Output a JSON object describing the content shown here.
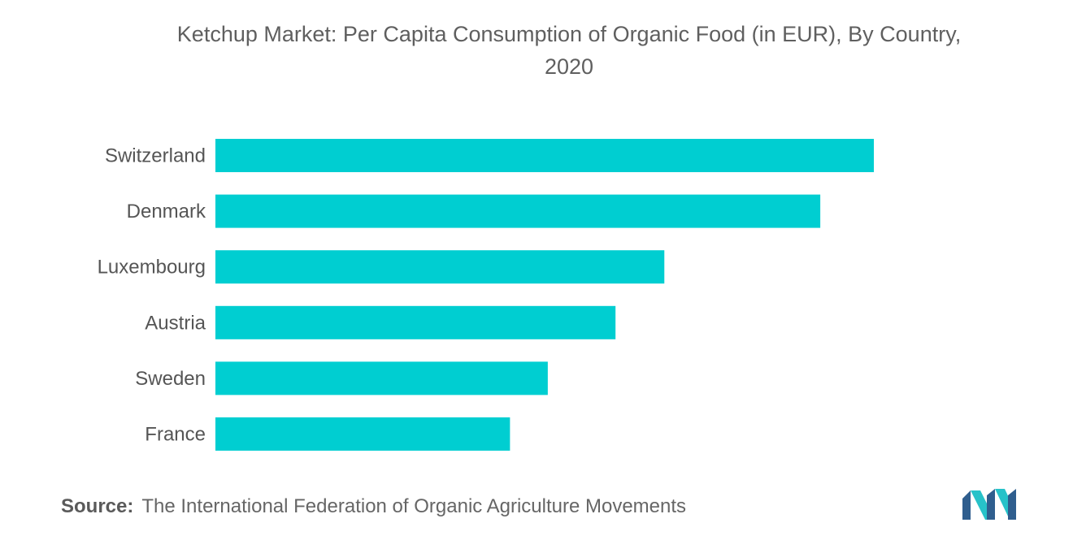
{
  "chart_data": {
    "type": "bar",
    "orientation": "horizontal",
    "title_line1": "Ketchup Market: Per Capita Consumption of Organic Food (in EUR), By Country,",
    "title_line2": "2020",
    "categories": [
      "Switzerland",
      "Denmark",
      "Luxembourg",
      "Austria",
      "Sweden",
      "France"
    ],
    "values": [
      418,
      384,
      285,
      254,
      211,
      187
    ],
    "xlim": [
      0,
      430
    ],
    "bar_color": "#00ced1",
    "grid": false,
    "legend": "none"
  },
  "footer": {
    "source_label": "Source:",
    "source_text": "The International Federation of Organic Agriculture Movements"
  },
  "logo": {
    "icon": "mordor-intelligence-logo",
    "colors": [
      "#2f5e8e",
      "#27c2c9"
    ]
  }
}
